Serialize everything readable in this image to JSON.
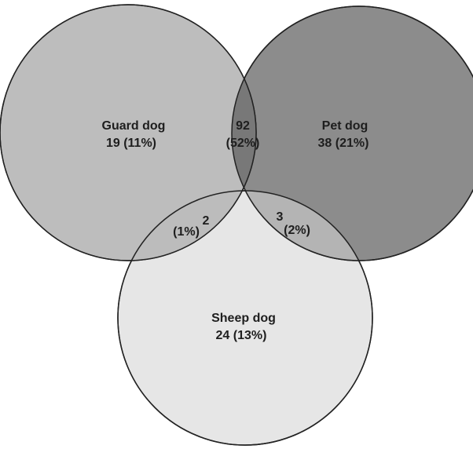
{
  "colors": {
    "guard": "#bdbdbd",
    "pet": "#8c8c8c",
    "sheep": "#e6e6e6",
    "guard_pet": "#787878",
    "guard_sheep": "#bcbcbc",
    "pet_sheep": "#b4b4b4",
    "outline": "#222222"
  },
  "sets": {
    "guard": {
      "label": "Guard dog",
      "value": "19  (11%)"
    },
    "pet": {
      "label": "Pet dog",
      "value": "38 (21%)"
    },
    "sheep": {
      "label": "Sheep dog",
      "value": "24  (13%)"
    }
  },
  "overlaps": {
    "guard_pet": {
      "count": "92",
      "percent": "(52%)"
    },
    "guard_sheep": {
      "count": "2",
      "percent": "(1%)"
    },
    "pet_sheep": {
      "count": "3",
      "percent": "(2%)"
    }
  }
}
